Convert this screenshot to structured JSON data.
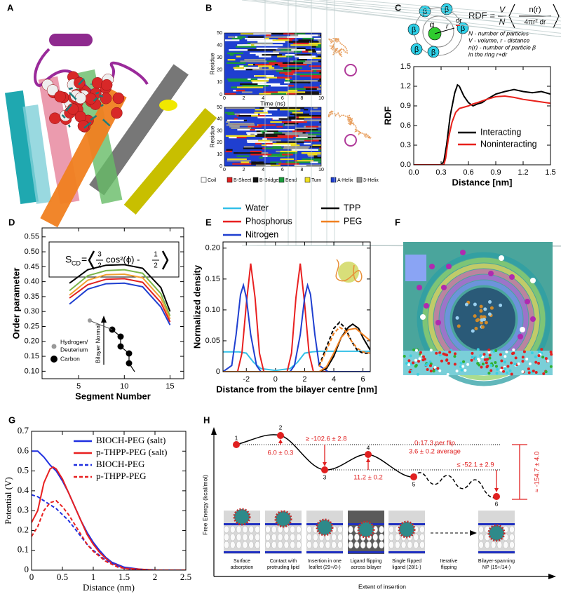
{
  "panel_labels": [
    "A",
    "B",
    "C",
    "D",
    "E",
    "F",
    "G",
    "H"
  ],
  "panel_b": {
    "y_label": "Residue",
    "x_label": "Time (ns)",
    "yticks": [
      0,
      10,
      20,
      30,
      40,
      50
    ],
    "xticks": [
      0,
      2,
      4,
      6,
      8,
      10
    ],
    "legend": [
      "Coil",
      "B-Sheet",
      "B-Bridge",
      "Bend",
      "Turn",
      "A-Helix",
      "3-Helix"
    ],
    "legend_colors": [
      "#ffffff",
      "#e02020",
      "#111111",
      "#1a9a3a",
      "#f0e020",
      "#1f3fd0",
      "#999999"
    ]
  },
  "panel_h": {
    "y_label": "Free Energy (kcal/mol)",
    "x_label": "Extent of insertion",
    "points": [
      "1",
      "2",
      "3",
      "4",
      "5",
      "6"
    ],
    "annotations": [
      "6.0 ± 0.3",
      "≥ -102.6 ± 2.8",
      "11.2 ± 0.2",
      "0-17.3 per flip",
      "3.6 ± 0.2 average",
      "≤ -52.1 ± 2.9",
      "≈ -154.7 ± 4.0"
    ],
    "captions": [
      [
        "Surface",
        "adsorption"
      ],
      [
        "Contact with",
        "protruding lipid"
      ],
      [
        "Insertion in one",
        "leaflet (29+/0-)"
      ],
      [
        "Ligand flipping",
        "across bilayer"
      ],
      [
        "Single flipped",
        "ligand (28/1-)"
      ],
      [
        "Iterative",
        "flipping"
      ],
      [
        "Bilayer-spanning",
        "NP (15+/14-)"
      ]
    ]
  },
  "chart_data": [
    {
      "type": "line",
      "xlabel": "Distance [nm]",
      "ylabel": "RDF",
      "xlim": [
        0,
        1.5
      ],
      "ylim": [
        0,
        1.5
      ],
      "xticks": [
        {
          "value": 0,
          "label": "0.0"
        },
        0.3,
        0.6,
        0.9,
        1.2,
        1.5
      ],
      "yticks": [
        {
          "value": 0,
          "label": "0.0"
        },
        0.3,
        0.6,
        0.9,
        1.2,
        1.5
      ],
      "legend": "lower right",
      "series": [
        {
          "name": "Interacting",
          "color": "#000000",
          "x": [
            0,
            0.3,
            0.33,
            0.36,
            0.4,
            0.45,
            0.48,
            0.5,
            0.55,
            0.6,
            0.65,
            0.7,
            0.75,
            0.8,
            0.9,
            1.0,
            1.1,
            1.2,
            1.3,
            1.4,
            1.5
          ],
          "values": [
            0,
            0,
            0.05,
            0.3,
            0.75,
            1.1,
            1.22,
            1.2,
            1.05,
            0.95,
            0.9,
            0.93,
            0.95,
            1.0,
            1.08,
            1.12,
            1.15,
            1.12,
            1.1,
            1.12,
            1.08
          ]
        },
        {
          "name": "Noninteracting",
          "color": "#e8201a",
          "x": [
            0,
            0.33,
            0.35,
            0.38,
            0.42,
            0.46,
            0.5,
            0.55,
            0.6,
            0.65,
            0.7,
            0.8,
            0.9,
            1.0,
            1.1,
            1.2,
            1.3,
            1.4,
            1.5
          ],
          "values": [
            0,
            0,
            0.1,
            0.4,
            0.65,
            0.8,
            0.86,
            0.88,
            0.9,
            0.93,
            0.95,
            1.0,
            1.04,
            1.05,
            1.03,
            1.0,
            0.98,
            0.96,
            0.94
          ]
        }
      ],
      "annotations": {
        "rdf": "RDF =",
        "v": "V",
        "n": "N",
        "numerator": "n(r)",
        "denominator": "4πr² dr",
        "defs": [
          "N - number of particles",
          "V - volume, r - distance",
          "n(r) - number of particle β",
          "in the ring r+dr"
        ],
        "alpha": "α",
        "beta": "β",
        "r": "r",
        "dr": "dr"
      }
    },
    {
      "type": "line",
      "xlabel": "Segment Number",
      "ylabel": "Order parameter",
      "xlim": [
        1,
        16.5
      ],
      "ylim": [
        0.075,
        0.58
      ],
      "xticks": [
        5,
        10,
        15
      ],
      "yticks": [
        {
          "value": 0.1,
          "label": "0.10"
        },
        0.15,
        {
          "value": 0.2,
          "label": "0.20"
        },
        0.25,
        {
          "value": 0.3,
          "label": "0.30"
        },
        0.35,
        {
          "value": 0.4,
          "label": "0.40"
        },
        0.45,
        {
          "value": 0.5,
          "label": "0.50"
        },
        0.55
      ],
      "series": [
        {
          "color": "#000000",
          "x": [
            4,
            6,
            8,
            10,
            12,
            14,
            15
          ],
          "values": [
            0.395,
            0.44,
            0.455,
            0.457,
            0.445,
            0.38,
            0.3
          ]
        },
        {
          "color": "#7ab648",
          "x": [
            4,
            6,
            8,
            10,
            12,
            14,
            15
          ],
          "values": [
            0.37,
            0.42,
            0.437,
            0.44,
            0.428,
            0.36,
            0.285
          ]
        },
        {
          "color": "#f0a030",
          "x": [
            4,
            6,
            8,
            10,
            12,
            14,
            15
          ],
          "values": [
            0.355,
            0.405,
            0.423,
            0.425,
            0.413,
            0.345,
            0.275
          ]
        },
        {
          "color": "#e02020",
          "x": [
            4,
            6,
            8,
            10,
            12,
            14,
            15
          ],
          "values": [
            0.345,
            0.39,
            0.408,
            0.41,
            0.398,
            0.33,
            0.265
          ]
        },
        {
          "color": "#1f3fd0",
          "x": [
            4,
            6,
            8,
            10,
            12,
            14,
            15
          ],
          "values": [
            0.325,
            0.375,
            0.393,
            0.395,
            0.383,
            0.315,
            0.255
          ]
        }
      ],
      "annotations": {
        "s": "S",
        "sub": "CD",
        "eq": "=",
        "frac1": [
          "3",
          "2"
        ],
        "cos": "cos²(ϕ) -",
        "frac2": [
          "1",
          "2"
        ],
        "legend": [
          "Hydrogen/",
          "Deuterium",
          "Carbon"
        ],
        "normal": "Bilayer Normal"
      }
    },
    {
      "type": "line",
      "xlabel": "Distance from the bilayer centre [nm]",
      "ylabel": "Normalized density",
      "xlim": [
        -3.6,
        6.5
      ],
      "ylim": [
        0,
        0.21
      ],
      "xticks": [
        -2,
        0,
        2,
        4,
        6
      ],
      "yticks": [
        0,
        0.05,
        {
          "value": 0.1,
          "label": "0.10"
        },
        0.15,
        {
          "value": 0.2,
          "label": "0.20"
        }
      ],
      "legend": "top",
      "series": [
        {
          "name": "Water",
          "color": "#33c0e8",
          "x": [
            -3.6,
            -2.5,
            -2,
            -1.5,
            -1,
            0,
            1,
            1.5,
            2,
            2.5,
            3,
            4,
            6.5
          ],
          "values": [
            0.032,
            0.032,
            0.03,
            0.015,
            0.005,
            0.002,
            0.005,
            0.015,
            0.03,
            0.032,
            0.033,
            0.033,
            0.033
          ]
        },
        {
          "name": "Phosphorus",
          "color": "#e82020",
          "x": [
            -3.6,
            -2.6,
            -2.3,
            -2,
            -1.7,
            -1.4,
            -1.1,
            -0.8,
            0.8,
            1.1,
            1.4,
            1.7,
            2,
            2.3,
            2.6,
            6.5
          ],
          "values": [
            0,
            0,
            0.03,
            0.11,
            0.175,
            0.12,
            0.03,
            0,
            0,
            0.03,
            0.12,
            0.175,
            0.11,
            0.03,
            0,
            0
          ]
        },
        {
          "name": "Nitrogen",
          "color": "#1f3fd0",
          "x": [
            -3.6,
            -3,
            -2.7,
            -2.4,
            -2.2,
            -2,
            -1.7,
            -1.3,
            -1,
            1,
            1.3,
            1.7,
            2,
            2.2,
            2.4,
            2.7,
            3,
            3.6,
            6.5
          ],
          "values": [
            0,
            0.01,
            0.06,
            0.125,
            0.14,
            0.12,
            0.06,
            0.01,
            0,
            0,
            0.01,
            0.06,
            0.12,
            0.14,
            0.125,
            0.06,
            0.01,
            0,
            0
          ]
        },
        {
          "name": "TPP",
          "color": "#000000",
          "x": [
            -3.6,
            3,
            3.5,
            4,
            4.5,
            5,
            5.3,
            5.7,
            6,
            6.5
          ],
          "values": [
            0,
            0,
            0.005,
            0.025,
            0.055,
            0.072,
            0.077,
            0.07,
            0.055,
            0.035
          ]
        },
        {
          "name": "PEG",
          "color": "#f08020",
          "x": [
            -3.6,
            3,
            3.5,
            4,
            4.5,
            5,
            5.5,
            6,
            6.5
          ],
          "values": [
            0,
            0,
            0.008,
            0.03,
            0.055,
            0.068,
            0.07,
            0.06,
            0.05
          ]
        },
        {
          "color": "#000000",
          "dash": true,
          "x": [
            3,
            3.5,
            4,
            4.4,
            4.8,
            5.2,
            5.6,
            6,
            6.5
          ],
          "values": [
            0.01,
            0.04,
            0.07,
            0.08,
            0.07,
            0.05,
            0.035,
            0.03,
            0.03
          ]
        },
        {
          "color": "#f08020",
          "dash": true,
          "x": [
            3,
            3.5,
            4,
            4.4,
            4.8,
            5.2,
            5.6,
            6,
            6.5
          ],
          "values": [
            0.008,
            0.035,
            0.062,
            0.072,
            0.066,
            0.05,
            0.038,
            0.032,
            0.03
          ]
        }
      ]
    },
    {
      "type": "line",
      "xlabel": "Distance (nm)",
      "ylabel": "Potential (V)",
      "xlim": [
        0,
        2.5
      ],
      "ylim": [
        0,
        0.7
      ],
      "xticks": [
        0,
        0.5,
        1,
        1.5,
        2,
        2.5
      ],
      "yticks": [
        0,
        0.1,
        0.2,
        0.3,
        0.4,
        0.5,
        0.6,
        0.7
      ],
      "legend": "upper right",
      "series": [
        {
          "name": "BIOCH-PEG (salt)",
          "color": "#1f2fe0",
          "x": [
            0,
            0.1,
            0.2,
            0.3,
            0.4,
            0.5,
            0.6,
            0.7,
            0.8,
            0.9,
            1,
            1.1,
            1.2,
            1.3,
            1.5,
            1.75,
            2,
            2.5
          ],
          "values": [
            0.6,
            0.6,
            0.57,
            0.53,
            0.5,
            0.45,
            0.39,
            0.32,
            0.25,
            0.19,
            0.14,
            0.1,
            0.065,
            0.04,
            0.015,
            0.005,
            0,
            0
          ]
        },
        {
          "name": "p-THPP-PEG (salt)",
          "color": "#e82020",
          "x": [
            0,
            0.1,
            0.2,
            0.3,
            0.35,
            0.4,
            0.5,
            0.6,
            0.7,
            0.8,
            0.9,
            1,
            1.1,
            1.2,
            1.3,
            1.5,
            2,
            2.5
          ],
          "values": [
            0.24,
            0.3,
            0.44,
            0.51,
            0.52,
            0.51,
            0.46,
            0.39,
            0.32,
            0.25,
            0.18,
            0.13,
            0.09,
            0.06,
            0.035,
            0.01,
            0,
            0
          ]
        },
        {
          "name": "BIOCH-PEG",
          "color": "#1f2fe0",
          "dash": true,
          "x": [
            0,
            0.1,
            0.2,
            0.3,
            0.4,
            0.5,
            0.6,
            0.7,
            0.8,
            0.9,
            1,
            1.2,
            1.4,
            1.6,
            2,
            2.5
          ],
          "values": [
            0.38,
            0.37,
            0.35,
            0.33,
            0.31,
            0.28,
            0.25,
            0.21,
            0.17,
            0.13,
            0.1,
            0.05,
            0.02,
            0.005,
            0,
            0
          ]
        },
        {
          "name": "p-THPP-PEG",
          "color": "#e82020",
          "dash": true,
          "x": [
            0,
            0.1,
            0.2,
            0.3,
            0.4,
            0.5,
            0.6,
            0.7,
            0.8,
            0.9,
            1,
            1.2,
            1.4,
            1.6,
            2,
            2.5
          ],
          "values": [
            0.17,
            0.22,
            0.3,
            0.34,
            0.35,
            0.32,
            0.28,
            0.23,
            0.18,
            0.13,
            0.095,
            0.045,
            0.015,
            0.005,
            0,
            0
          ]
        }
      ]
    }
  ]
}
